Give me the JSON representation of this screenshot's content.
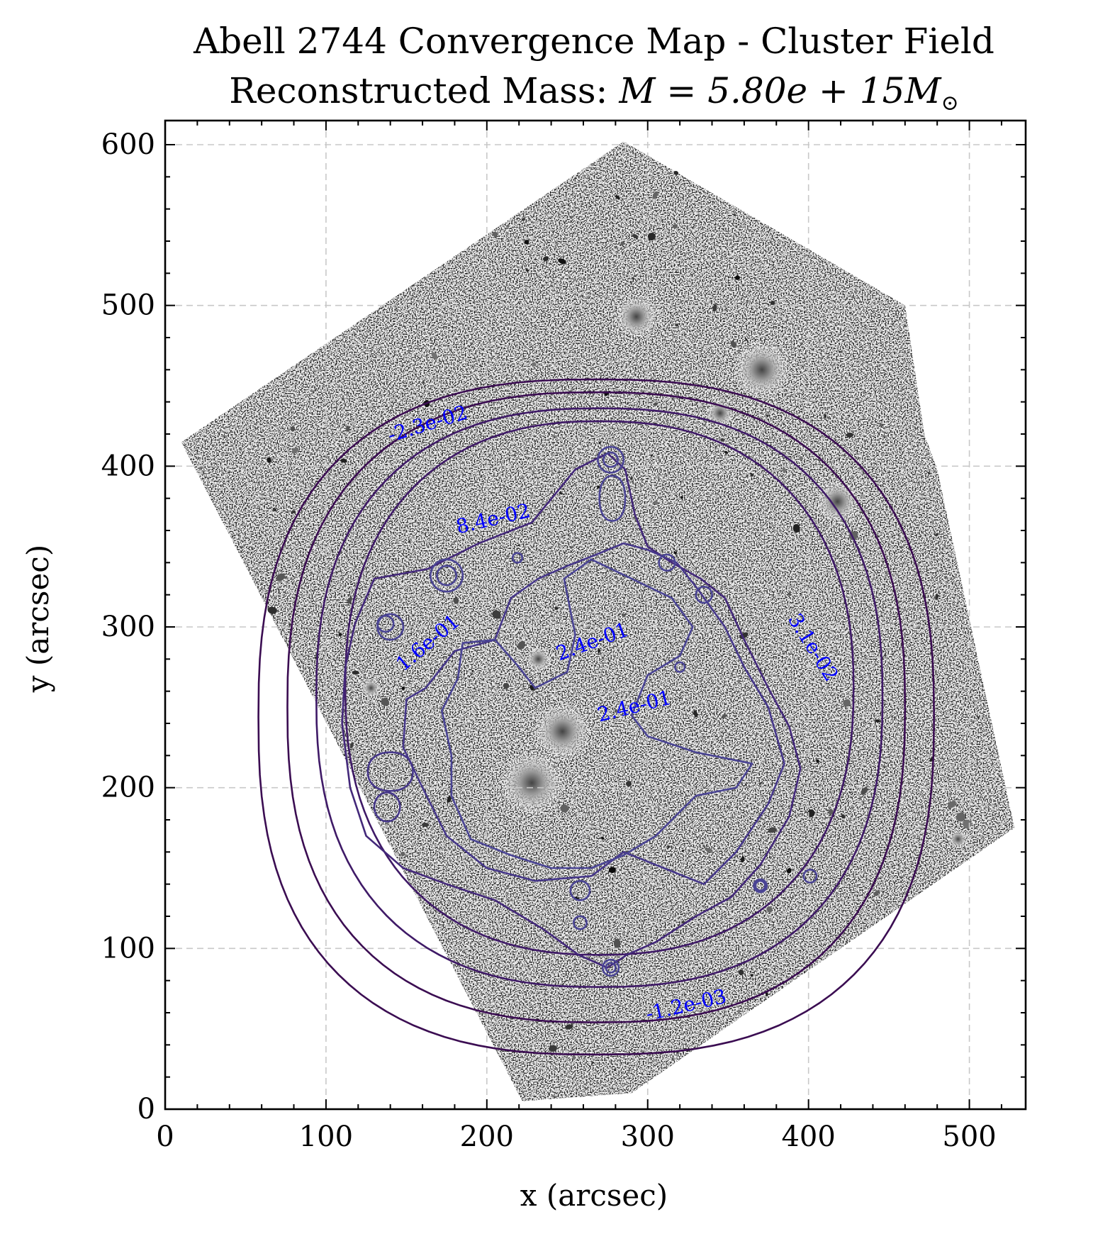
{
  "chart_data": {
    "type": "contour",
    "title": "Abell 2744 Convergence Map - Cluster Field",
    "subtitle_prefix": "Reconstructed Mass: ",
    "subtitle_math": "M = 5.80e + 15M",
    "subtitle_sub": "⊙",
    "xlabel": "x (arcsec)",
    "ylabel": "y (arcsec)",
    "xlim": [
      0,
      535
    ],
    "ylim": [
      0,
      615
    ],
    "xticks": [
      0,
      100,
      200,
      300,
      400,
      500
    ],
    "yticks": [
      0,
      100,
      200,
      300,
      400,
      500,
      600
    ],
    "grid": true,
    "background": "grayscale cluster field image",
    "contour_levels": [
      {
        "label": "-1.2e-03",
        "color": "#3b0d52"
      },
      {
        "label": "-2.3e-02",
        "color": "#3b0d52"
      },
      {
        "label": "3.1e-02",
        "color": "#3f1a67"
      },
      {
        "label": "8.4e-02",
        "color": "#43287a"
      },
      {
        "label": "1.6e-01",
        "color": "#46378a"
      },
      {
        "label": "2.4e-01",
        "color": "#4a4494"
      }
    ],
    "contour_labels": [
      {
        "text": "-2.3e-02",
        "x": 140,
        "y": 415,
        "angle": -17
      },
      {
        "text": "8.4e-02",
        "x": 182,
        "y": 358,
        "angle": -13
      },
      {
        "text": "3.1e-02",
        "x": 387,
        "y": 305,
        "angle": 58
      },
      {
        "text": "1.6e-01",
        "x": 148,
        "y": 272,
        "angle": -40
      },
      {
        "text": "2.4e-01",
        "x": 245,
        "y": 279,
        "angle": -20
      },
      {
        "text": "2.4e-01",
        "x": 270,
        "y": 241,
        "angle": -14
      },
      {
        "text": "-1.2e-03",
        "x": 300,
        "y": 55,
        "angle": -13
      }
    ]
  }
}
